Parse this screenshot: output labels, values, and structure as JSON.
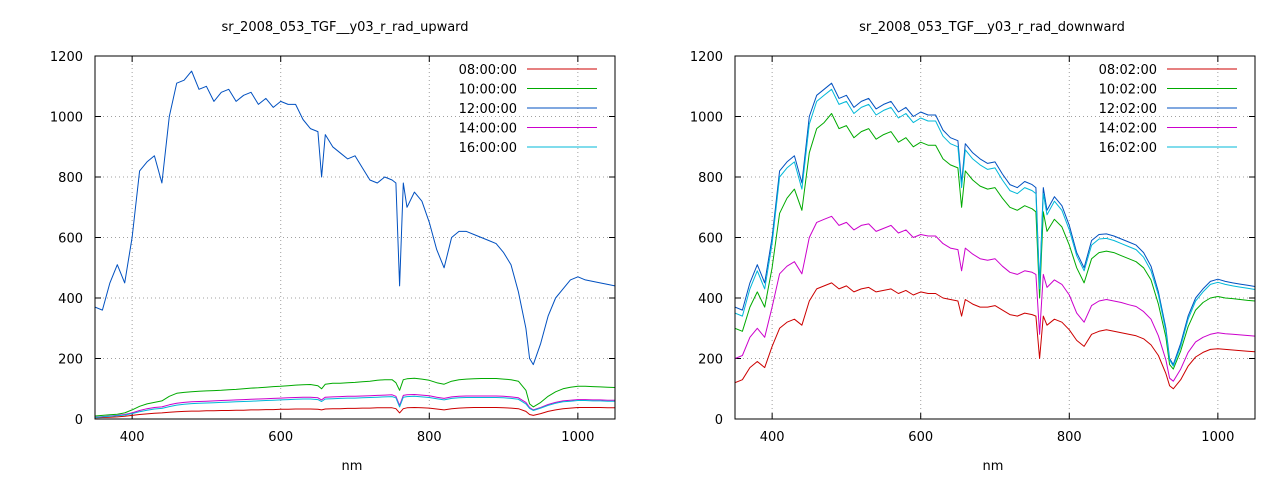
{
  "chart_data": [
    {
      "type": "line",
      "title": "sr_2008_053_TGF__y03_r_rad_upward",
      "xlabel": "nm",
      "ylabel": "",
      "xlim": [
        350,
        1050
      ],
      "ylim": [
        0,
        1200
      ],
      "xticks": [
        400,
        600,
        800,
        1000
      ],
      "yticks": [
        0,
        200,
        400,
        600,
        800,
        1000,
        1200
      ],
      "grid": true,
      "legend_position": "top-right",
      "x": [
        350,
        360,
        370,
        380,
        390,
        400,
        410,
        420,
        430,
        440,
        450,
        460,
        470,
        480,
        490,
        500,
        510,
        520,
        530,
        540,
        550,
        560,
        570,
        580,
        590,
        600,
        610,
        620,
        630,
        640,
        650,
        655,
        660,
        670,
        680,
        690,
        700,
        710,
        720,
        730,
        740,
        750,
        755,
        760,
        765,
        770,
        780,
        790,
        800,
        810,
        820,
        830,
        840,
        850,
        860,
        870,
        880,
        890,
        900,
        910,
        920,
        930,
        935,
        940,
        950,
        960,
        970,
        980,
        990,
        1000,
        1010,
        1020,
        1030,
        1040,
        1050
      ],
      "series": [
        {
          "name": "08:00:00",
          "color": "#cc0000",
          "values": [
            4,
            5,
            6,
            7,
            9,
            12,
            15,
            17,
            19,
            20,
            22,
            24,
            25,
            26,
            26,
            27,
            27,
            28,
            28,
            29,
            29,
            30,
            30,
            31,
            31,
            32,
            32,
            33,
            33,
            33,
            32,
            30,
            33,
            34,
            34,
            35,
            35,
            36,
            36,
            37,
            37,
            37,
            34,
            20,
            34,
            37,
            38,
            37,
            36,
            33,
            30,
            34,
            36,
            37,
            38,
            38,
            38,
            38,
            37,
            36,
            34,
            25,
            15,
            12,
            18,
            25,
            30,
            34,
            36,
            38,
            38,
            38,
            38,
            37,
            37
          ]
        },
        {
          "name": "10:00:00",
          "color": "#00aa00",
          "values": [
            10,
            12,
            14,
            16,
            20,
            30,
            42,
            50,
            55,
            60,
            75,
            85,
            88,
            90,
            92,
            93,
            94,
            95,
            97,
            98,
            100,
            102,
            103,
            105,
            107,
            108,
            110,
            112,
            113,
            114,
            110,
            100,
            115,
            118,
            118,
            120,
            121,
            123,
            125,
            128,
            130,
            130,
            120,
            95,
            130,
            133,
            135,
            132,
            128,
            120,
            115,
            125,
            130,
            132,
            133,
            134,
            134,
            134,
            132,
            130,
            125,
            95,
            50,
            40,
            55,
            75,
            90,
            100,
            105,
            108,
            108,
            107,
            106,
            105,
            104
          ]
        },
        {
          "name": "12:00:00",
          "color": "#0050c0",
          "values": [
            370,
            360,
            450,
            510,
            450,
            600,
            820,
            850,
            870,
            780,
            1000,
            1110,
            1120,
            1150,
            1090,
            1100,
            1050,
            1080,
            1090,
            1050,
            1070,
            1080,
            1040,
            1060,
            1030,
            1050,
            1040,
            1040,
            990,
            960,
            950,
            800,
            940,
            900,
            880,
            860,
            870,
            830,
            790,
            780,
            800,
            790,
            780,
            440,
            780,
            700,
            750,
            720,
            650,
            560,
            500,
            600,
            620,
            620,
            610,
            600,
            590,
            580,
            550,
            510,
            420,
            300,
            200,
            180,
            250,
            340,
            400,
            430,
            460,
            470,
            460,
            455,
            450,
            445,
            440
          ]
        },
        {
          "name": "14:00:00",
          "color": "#cc00cc",
          "values": [
            6,
            8,
            10,
            12,
            15,
            20,
            28,
            34,
            38,
            40,
            47,
            52,
            55,
            57,
            58,
            59,
            60,
            61,
            62,
            63,
            64,
            65,
            66,
            67,
            68,
            69,
            70,
            71,
            72,
            72,
            70,
            63,
            72,
            73,
            74,
            75,
            75,
            76,
            77,
            78,
            79,
            80,
            75,
            45,
            78,
            80,
            81,
            79,
            77,
            72,
            68,
            73,
            75,
            76,
            76,
            76,
            76,
            76,
            75,
            73,
            70,
            55,
            38,
            30,
            38,
            48,
            55,
            60,
            62,
            64,
            64,
            63,
            63,
            62,
            62
          ]
        },
        {
          "name": "16:00:00",
          "color": "#00b8d8",
          "values": [
            5,
            7,
            9,
            11,
            13,
            18,
            24,
            29,
            33,
            35,
            41,
            46,
            49,
            51,
            52,
            53,
            54,
            55,
            56,
            57,
            58,
            59,
            60,
            61,
            62,
            63,
            64,
            65,
            66,
            66,
            64,
            58,
            66,
            67,
            68,
            69,
            69,
            70,
            71,
            72,
            73,
            74,
            70,
            40,
            72,
            74,
            75,
            73,
            71,
            67,
            63,
            68,
            70,
            71,
            71,
            71,
            71,
            71,
            70,
            68,
            65,
            50,
            35,
            28,
            36,
            45,
            52,
            57,
            59,
            61,
            61,
            60,
            60,
            59,
            59
          ]
        }
      ]
    },
    {
      "type": "line",
      "title": "sr_2008_053_TGF__y03_r_rad_downward",
      "xlabel": "nm",
      "ylabel": "",
      "xlim": [
        350,
        1050
      ],
      "ylim": [
        0,
        1200
      ],
      "xticks": [
        400,
        600,
        800,
        1000
      ],
      "yticks": [
        0,
        200,
        400,
        600,
        800,
        1000,
        1200
      ],
      "grid": true,
      "legend_position": "top-right",
      "x": [
        350,
        360,
        370,
        380,
        390,
        400,
        410,
        420,
        430,
        440,
        450,
        460,
        470,
        480,
        490,
        500,
        510,
        520,
        530,
        540,
        550,
        560,
        570,
        580,
        590,
        600,
        610,
        620,
        630,
        640,
        650,
        655,
        660,
        670,
        680,
        690,
        700,
        710,
        720,
        730,
        740,
        750,
        755,
        760,
        765,
        770,
        780,
        790,
        800,
        810,
        820,
        830,
        840,
        850,
        860,
        870,
        880,
        890,
        900,
        910,
        920,
        930,
        935,
        940,
        950,
        960,
        970,
        980,
        990,
        1000,
        1010,
        1020,
        1030,
        1040,
        1050
      ],
      "series": [
        {
          "name": "08:02:00",
          "color": "#cc0000",
          "values": [
            120,
            130,
            170,
            190,
            170,
            240,
            300,
            320,
            330,
            310,
            390,
            430,
            440,
            450,
            430,
            440,
            420,
            430,
            435,
            420,
            425,
            430,
            415,
            425,
            410,
            420,
            415,
            415,
            400,
            395,
            390,
            340,
            395,
            380,
            370,
            370,
            375,
            360,
            345,
            340,
            350,
            345,
            340,
            200,
            340,
            310,
            330,
            320,
            295,
            260,
            240,
            280,
            290,
            295,
            290,
            285,
            280,
            275,
            265,
            245,
            210,
            150,
            110,
            100,
            130,
            175,
            205,
            220,
            230,
            232,
            230,
            228,
            226,
            224,
            222
          ]
        },
        {
          "name": "10:02:00",
          "color": "#00aa00",
          "values": [
            300,
            290,
            370,
            420,
            370,
            500,
            680,
            730,
            760,
            690,
            880,
            960,
            980,
            1010,
            960,
            970,
            930,
            950,
            960,
            925,
            940,
            950,
            915,
            930,
            900,
            915,
            905,
            905,
            860,
            840,
            830,
            700,
            820,
            790,
            770,
            760,
            765,
            730,
            700,
            690,
            705,
            695,
            685,
            400,
            685,
            620,
            660,
            635,
            575,
            500,
            450,
            530,
            550,
            555,
            550,
            540,
            530,
            520,
            500,
            460,
            380,
            270,
            180,
            165,
            225,
            305,
            360,
            385,
            400,
            405,
            400,
            398,
            395,
            392,
            390
          ]
        },
        {
          "name": "12:02:00",
          "color": "#0050c0",
          "values": [
            370,
            360,
            450,
            510,
            450,
            600,
            820,
            850,
            870,
            780,
            1000,
            1070,
            1090,
            1110,
            1060,
            1070,
            1030,
            1050,
            1060,
            1025,
            1040,
            1050,
            1015,
            1030,
            1000,
            1015,
            1005,
            1005,
            955,
            930,
            920,
            780,
            910,
            880,
            860,
            845,
            850,
            810,
            775,
            765,
            785,
            775,
            765,
            440,
            765,
            690,
            735,
            705,
            640,
            550,
            500,
            590,
            610,
            612,
            605,
            595,
            585,
            575,
            550,
            505,
            420,
            300,
            200,
            180,
            250,
            340,
            400,
            430,
            455,
            462,
            455,
            450,
            446,
            442,
            438
          ]
        },
        {
          "name": "14:02:00",
          "color": "#cc00cc",
          "values": [
            200,
            210,
            270,
            300,
            270,
            370,
            480,
            505,
            520,
            480,
            600,
            650,
            660,
            670,
            640,
            650,
            625,
            640,
            645,
            620,
            630,
            640,
            615,
            625,
            600,
            610,
            605,
            605,
            580,
            565,
            560,
            490,
            565,
            545,
            530,
            525,
            530,
            505,
            485,
            478,
            490,
            485,
            478,
            280,
            478,
            435,
            460,
            445,
            410,
            350,
            320,
            375,
            390,
            395,
            390,
            385,
            378,
            372,
            355,
            330,
            275,
            195,
            135,
            125,
            165,
            220,
            255,
            270,
            280,
            285,
            282,
            280,
            278,
            276,
            274
          ]
        },
        {
          "name": "16:02:00",
          "color": "#00b8d8",
          "values": [
            350,
            340,
            430,
            490,
            430,
            580,
            800,
            830,
            850,
            760,
            975,
            1050,
            1070,
            1090,
            1040,
            1050,
            1010,
            1030,
            1040,
            1005,
            1020,
            1030,
            995,
            1010,
            980,
            995,
            985,
            985,
            935,
            910,
            900,
            765,
            890,
            860,
            840,
            825,
            830,
            790,
            755,
            745,
            765,
            755,
            745,
            430,
            745,
            675,
            720,
            690,
            625,
            540,
            490,
            575,
            595,
            597,
            590,
            580,
            570,
            560,
            535,
            490,
            410,
            290,
            195,
            175,
            240,
            330,
            390,
            420,
            445,
            452,
            445,
            440,
            436,
            432,
            428
          ]
        }
      ]
    }
  ]
}
